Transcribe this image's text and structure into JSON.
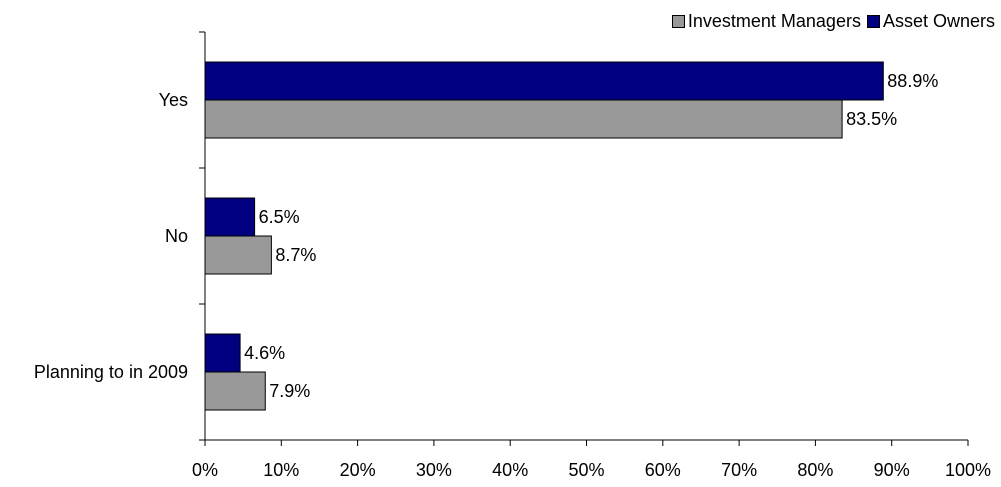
{
  "chart_data": {
    "type": "bar",
    "orientation": "horizontal",
    "categories": [
      "Yes",
      "No",
      "Planning to in 2009"
    ],
    "series": [
      {
        "name": "Asset Owners",
        "color": "#000080",
        "values": [
          88.9,
          6.5,
          4.6
        ]
      },
      {
        "name": "Investment Managers",
        "color": "#999999",
        "values": [
          83.5,
          8.7,
          7.9
        ]
      }
    ],
    "data_labels": [
      [
        "88.9%",
        "6.5%",
        "4.6%"
      ],
      [
        "83.5%",
        "8.7%",
        "7.9%"
      ]
    ],
    "x_ticks": [
      "0%",
      "10%",
      "20%",
      "30%",
      "40%",
      "50%",
      "60%",
      "70%",
      "80%",
      "90%",
      "100%"
    ],
    "xlim": [
      0,
      100
    ],
    "grid": false,
    "legend_position": "top-right",
    "legend_order": [
      "Investment Managers",
      "Asset Owners"
    ]
  }
}
